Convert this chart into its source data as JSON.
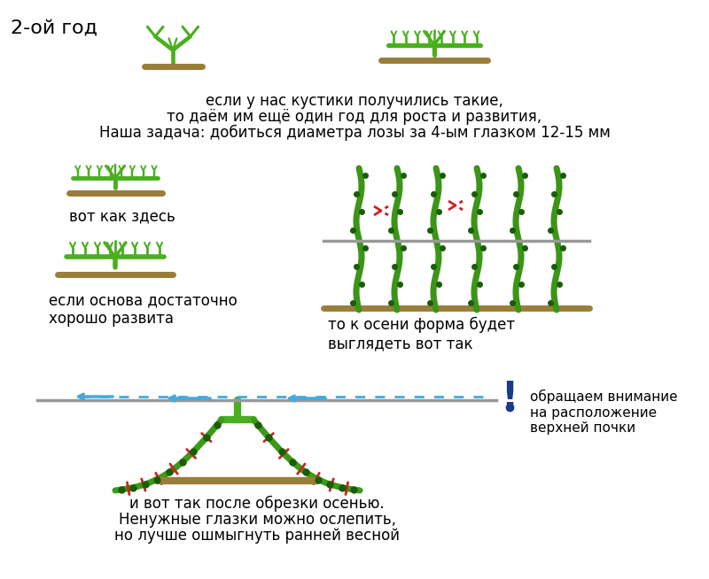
{
  "bg_color": "#ffffff",
  "title_year": "2-ой год",
  "text1": "если у нас кустики получились такие,",
  "text2": "то даём им ещё один год для роста и развития,",
  "text3": "Наша задача: добиться диаметра лозы за 4-ым глазком 12-15 мм",
  "text_vot_kak": "вот как здесь",
  "text_esli_osnova": "если основа достаточно\nхорошо развита",
  "text_to_k_oseni": "то к осени форма будет\nвыглядеть вот так",
  "text_obr_vnimanie": "обращаем внимание\nна расположение\nверхней почки",
  "text_bottom1": "и вот так после обрезки осенью.",
  "text_bottom2": "Ненужные глазки можно ослепить,",
  "text_bottom3": "но лучше ошмыгнуть ранней весной",
  "vine_green": "#4aaf1e",
  "vine_dark_green": "#1a5c08",
  "vine_brown": "#9b7d3a",
  "vine_red": "#cc2222",
  "arrow_blue": "#44aadd",
  "excl_blue": "#1a3a8a",
  "gray_line": "#999999",
  "text_color": "#000000",
  "font_size_title": 15,
  "font_size_large": 13,
  "font_size_medium": 12,
  "font_size_small": 11
}
